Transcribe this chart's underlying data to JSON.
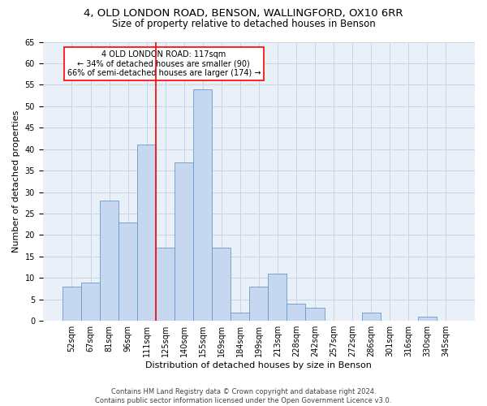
{
  "title1": "4, OLD LONDON ROAD, BENSON, WALLINGFORD, OX10 6RR",
  "title2": "Size of property relative to detached houses in Benson",
  "xlabel": "Distribution of detached houses by size in Benson",
  "ylabel": "Number of detached properties",
  "categories": [
    "52sqm",
    "67sqm",
    "81sqm",
    "96sqm",
    "111sqm",
    "125sqm",
    "140sqm",
    "155sqm",
    "169sqm",
    "184sqm",
    "199sqm",
    "213sqm",
    "228sqm",
    "242sqm",
    "257sqm",
    "272sqm",
    "286sqm",
    "301sqm",
    "316sqm",
    "330sqm",
    "345sqm"
  ],
  "values": [
    8,
    9,
    28,
    23,
    41,
    17,
    37,
    54,
    17,
    2,
    8,
    11,
    4,
    3,
    0,
    0,
    2,
    0,
    0,
    1,
    0
  ],
  "bar_color": "#c5d8f0",
  "bar_edge_color": "#6699cc",
  "vline_x": 4.5,
  "annotation_line1": "4 OLD LONDON ROAD: 117sqm",
  "annotation_line2": "← 34% of detached houses are smaller (90)",
  "annotation_line3": "66% of semi-detached houses are larger (174) →",
  "ylim": [
    0,
    65
  ],
  "yticks": [
    0,
    5,
    10,
    15,
    20,
    25,
    30,
    35,
    40,
    45,
    50,
    55,
    60,
    65
  ],
  "footer1": "Contains HM Land Registry data © Crown copyright and database right 2024.",
  "footer2": "Contains public sector information licensed under the Open Government Licence v3.0.",
  "bg_color": "#ffffff",
  "plot_bg_color": "#eaf0f8",
  "grid_color": "#c8d4e8",
  "title1_fontsize": 9.5,
  "title2_fontsize": 8.5,
  "xlabel_fontsize": 8,
  "ylabel_fontsize": 8,
  "tick_fontsize": 7,
  "annot_fontsize": 7,
  "footer_fontsize": 6
}
